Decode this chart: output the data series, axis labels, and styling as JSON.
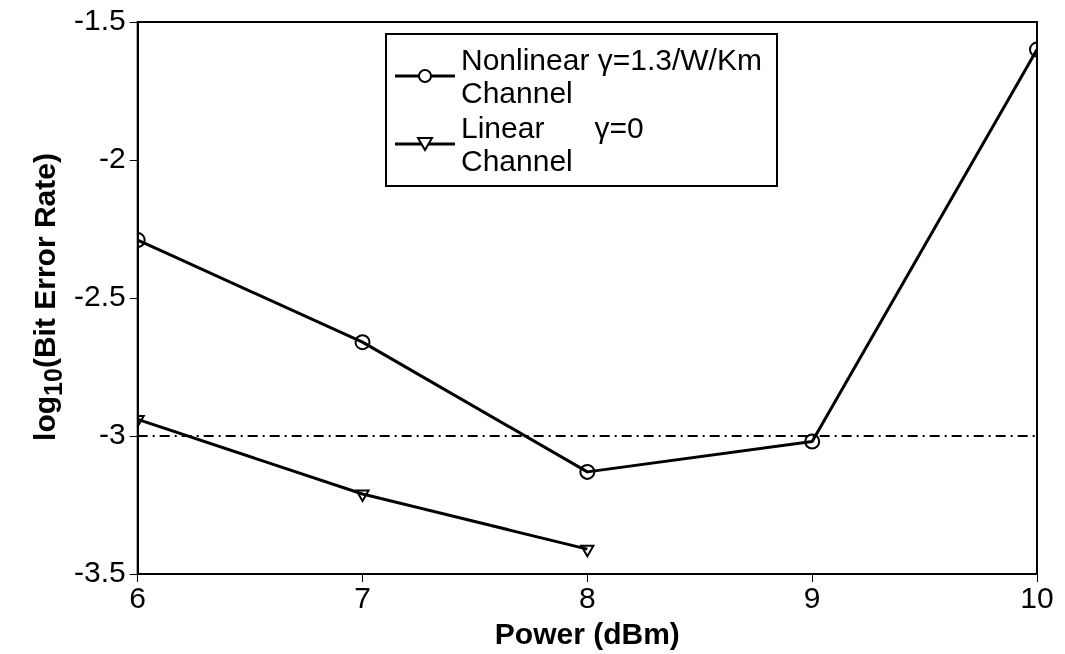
{
  "chart_data": {
    "type": "line",
    "xlabel": "Power (dBm)",
    "ylabel": "log$_{10}$(Bit Error Rate)",
    "x": [
      6,
      7,
      8,
      9,
      10
    ],
    "series": [
      {
        "name": "Nonlinear γ=1.3/W/Km\nChannel",
        "color": "#000000",
        "marker": "circle",
        "values": [
          -2.29,
          -2.66,
          -3.13,
          -3.02,
          -1.6
        ]
      },
      {
        "name": "Linear      γ=0\nChannel",
        "color": "#000000",
        "marker": "triangle",
        "x": [
          6,
          7,
          8
        ],
        "values": [
          -2.94,
          -3.21,
          -3.41
        ]
      }
    ],
    "xlim": [
      6,
      10
    ],
    "xticks": [
      6,
      7,
      8,
      9,
      10
    ],
    "ylim": [
      -3.5,
      -1.5
    ],
    "yticks": [
      -3.5,
      -3,
      -2.5,
      -2,
      -1.5
    ],
    "ref_lines": [
      {
        "axis": "y",
        "value": -3,
        "color": "#000000",
        "line_style": "dashdot"
      }
    ],
    "grid": false,
    "legend": "top",
    "line_style": "solid"
  }
}
